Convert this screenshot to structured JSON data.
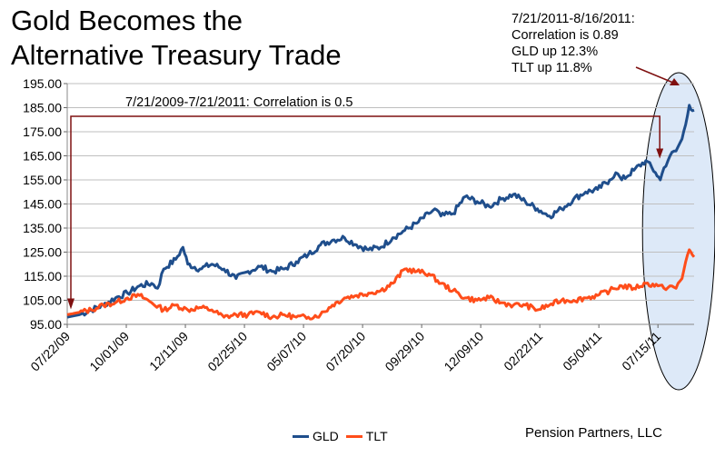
{
  "title_line1": "Gold Becomes the",
  "title_line2": "Alternative Treasury Trade",
  "callout": {
    "line1": "7/21/2011-8/16/2011:",
    "line2": "Correlation is 0.89",
    "line3": "GLD up 12.3%",
    "line4": "TLT up 11.8%"
  },
  "credit": "Pension Partners, LLC",
  "colors": {
    "gld": "#1F4E8C",
    "tlt": "#FF4D1A",
    "arrow": "#7F1010",
    "grid": "#bfbfbf",
    "highlight": "#dde9f8"
  },
  "chart_data": {
    "type": "line",
    "title": "Gold Becomes the Alternative Treasury Trade",
    "xlabel": "",
    "ylabel": "",
    "ylim": [
      95,
      195
    ],
    "yticks": [
      "95.00",
      "105.00",
      "115.00",
      "125.00",
      "135.00",
      "145.00",
      "155.00",
      "165.00",
      "175.00",
      "185.00",
      "195.00"
    ],
    "ytick_values": [
      95,
      105,
      115,
      125,
      135,
      145,
      155,
      165,
      175,
      185,
      195
    ],
    "xticks": [
      "07/22/09",
      "10/01/09",
      "12/11/09",
      "02/25/10",
      "05/07/10",
      "07/20/10",
      "09/29/10",
      "12/09/10",
      "02/22/11",
      "05/04/11",
      "07/15/11"
    ],
    "x_range": [
      0,
      520
    ],
    "xtick_positions": [
      0,
      49,
      98,
      147,
      196,
      245,
      294,
      343,
      392,
      441,
      490
    ],
    "legend": [
      "GLD",
      "TLT"
    ],
    "annotation": "7/21/2009-7/21/2011: Correlation is 0.5",
    "annotation_span": [
      0,
      490
    ],
    "highlight_span": [
      490,
      520
    ],
    "series": [
      {
        "name": "GLD",
        "x": [
          0,
          10,
          20,
          30,
          40,
          50,
          60,
          70,
          75,
          80,
          90,
          96,
          100,
          110,
          120,
          130,
          140,
          150,
          160,
          170,
          180,
          190,
          200,
          210,
          220,
          230,
          240,
          250,
          260,
          270,
          280,
          290,
          300,
          305,
          310,
          320,
          330,
          340,
          350,
          360,
          370,
          380,
          390,
          400,
          410,
          420,
          430,
          440,
          450,
          455,
          460,
          470,
          480,
          488,
          492,
          495,
          500,
          505,
          510,
          513,
          516,
          520
        ],
        "y": [
          98,
          99,
          101,
          103,
          106,
          108,
          111,
          112,
          110,
          118,
          122,
          127,
          120,
          118,
          120,
          118,
          114,
          117,
          119,
          117,
          118,
          121,
          124,
          128,
          130,
          131,
          128,
          126,
          127,
          131,
          134,
          137,
          141,
          143,
          140,
          141,
          148,
          146,
          144,
          147,
          149,
          146,
          143,
          140,
          143,
          147,
          150,
          151,
          155,
          158,
          155,
          159,
          163,
          158,
          155,
          160,
          165,
          167,
          172,
          178,
          186,
          184
        ]
      },
      {
        "name": "TLT",
        "x": [
          0,
          10,
          20,
          30,
          40,
          50,
          60,
          70,
          80,
          90,
          100,
          110,
          120,
          130,
          140,
          150,
          160,
          170,
          180,
          190,
          200,
          210,
          220,
          230,
          240,
          250,
          260,
          270,
          280,
          290,
          300,
          310,
          320,
          330,
          340,
          350,
          360,
          370,
          380,
          390,
          400,
          410,
          420,
          430,
          440,
          450,
          460,
          470,
          480,
          490,
          495,
          500,
          505,
          510,
          513,
          516,
          520
        ],
        "y": [
          99,
          100,
          101,
          103,
          104,
          106,
          107,
          104,
          101,
          103,
          101,
          102,
          101,
          98,
          99,
          99,
          100,
          98,
          99,
          98,
          98,
          99,
          103,
          106,
          107,
          108,
          109,
          112,
          118,
          117,
          116,
          112,
          109,
          106,
          105,
          106,
          104,
          103,
          103,
          101,
          103,
          105,
          105,
          106,
          107,
          109,
          111,
          110,
          112,
          111,
          110,
          111,
          110,
          114,
          121,
          126,
          123
        ]
      }
    ]
  }
}
